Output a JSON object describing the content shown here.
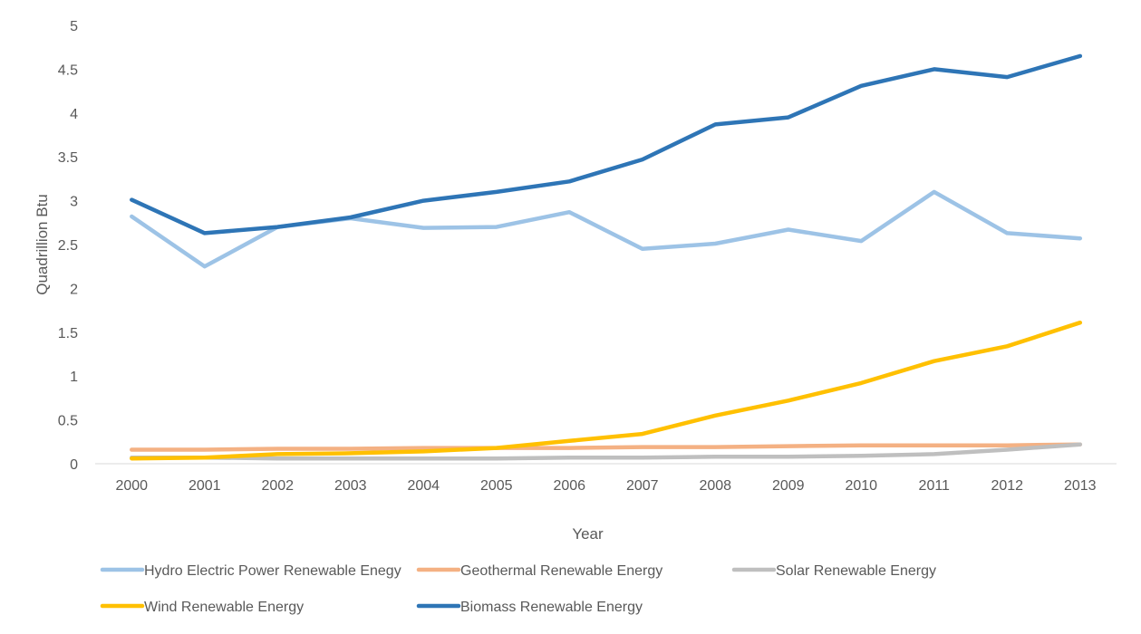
{
  "chart_data": {
    "type": "line",
    "title": "",
    "xlabel": "Year",
    "ylabel": "Quadrillion Btu",
    "x": [
      "2000",
      "2001",
      "2002",
      "2003",
      "2004",
      "2005",
      "2006",
      "2007",
      "2008",
      "2009",
      "2010",
      "2011",
      "2012",
      "2013"
    ],
    "yticks": [
      "0",
      "0.5",
      "1",
      "1.5",
      "2",
      "2.5",
      "3",
      "3.5",
      "4",
      "4.5",
      "5"
    ],
    "ylim": [
      0,
      5
    ],
    "grid": false,
    "legend_position": "bottom",
    "series": [
      {
        "name": "Hydro Electric Power Renewable Enegy",
        "color": "#9DC3E6",
        "values": [
          2.82,
          2.25,
          2.7,
          2.8,
          2.69,
          2.7,
          2.87,
          2.45,
          2.51,
          2.67,
          2.54,
          3.1,
          2.63,
          2.57
        ]
      },
      {
        "name": "Geothermal Renewable Energy",
        "color": "#F4B183",
        "values": [
          0.16,
          0.16,
          0.17,
          0.17,
          0.18,
          0.18,
          0.18,
          0.19,
          0.19,
          0.2,
          0.21,
          0.21,
          0.21,
          0.22
        ]
      },
      {
        "name": "Solar Renewable Energy",
        "color": "#BFBFBF",
        "values": [
          0.07,
          0.07,
          0.06,
          0.06,
          0.06,
          0.06,
          0.07,
          0.07,
          0.08,
          0.08,
          0.09,
          0.11,
          0.16,
          0.22
        ]
      },
      {
        "name": "Wind Renewable Energy",
        "color": "#FFC000",
        "values": [
          0.06,
          0.07,
          0.11,
          0.12,
          0.14,
          0.18,
          0.26,
          0.34,
          0.55,
          0.72,
          0.92,
          1.17,
          1.34,
          1.61
        ]
      },
      {
        "name": "Biomass Renewable Energy",
        "color": "#2E75B6",
        "values": [
          3.01,
          2.63,
          2.7,
          2.81,
          3.0,
          3.1,
          3.22,
          3.47,
          3.87,
          3.95,
          4.31,
          4.5,
          4.41,
          4.65
        ]
      }
    ]
  }
}
